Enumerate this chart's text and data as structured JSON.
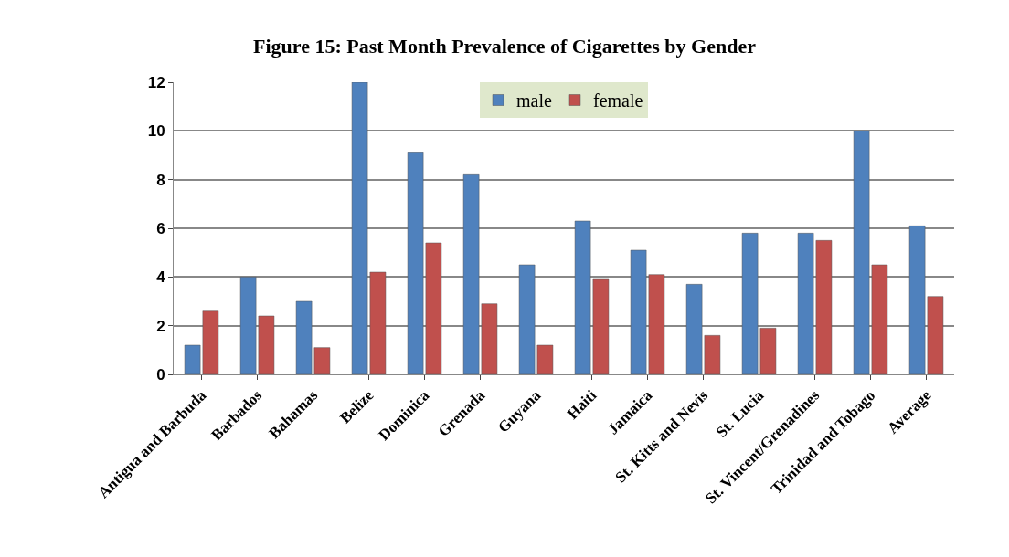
{
  "chart_data": {
    "type": "bar",
    "title": "Figure 15: Past Month Prevalence of Cigarettes by Gender",
    "categories": [
      "Antigua and Barbuda",
      "Barbados",
      "Bahamas",
      "Belize",
      "Dominica",
      "Grenada",
      "Guyana",
      "Haiti",
      "Jamaica",
      "St. Kitts and Nevis",
      "St. Lucia",
      "St. Vincent/Grenadines",
      "Trinidad and Tobago",
      "Average"
    ],
    "series": [
      {
        "name": "male",
        "color": "#4f81bd",
        "values": [
          1.2,
          4.0,
          3.0,
          12.0,
          9.1,
          8.2,
          4.5,
          6.3,
          5.1,
          3.7,
          5.8,
          5.8,
          10.0,
          6.1
        ]
      },
      {
        "name": "female",
        "color": "#c0504d",
        "values": [
          2.6,
          2.4,
          1.1,
          4.2,
          5.4,
          2.9,
          1.2,
          3.9,
          4.1,
          1.6,
          1.9,
          5.5,
          4.5,
          3.2
        ]
      }
    ],
    "ylim": [
      0,
      12
    ],
    "yticks": [
      0,
      2,
      4,
      6,
      8,
      10,
      12
    ],
    "grid": "y",
    "legend": "top"
  }
}
